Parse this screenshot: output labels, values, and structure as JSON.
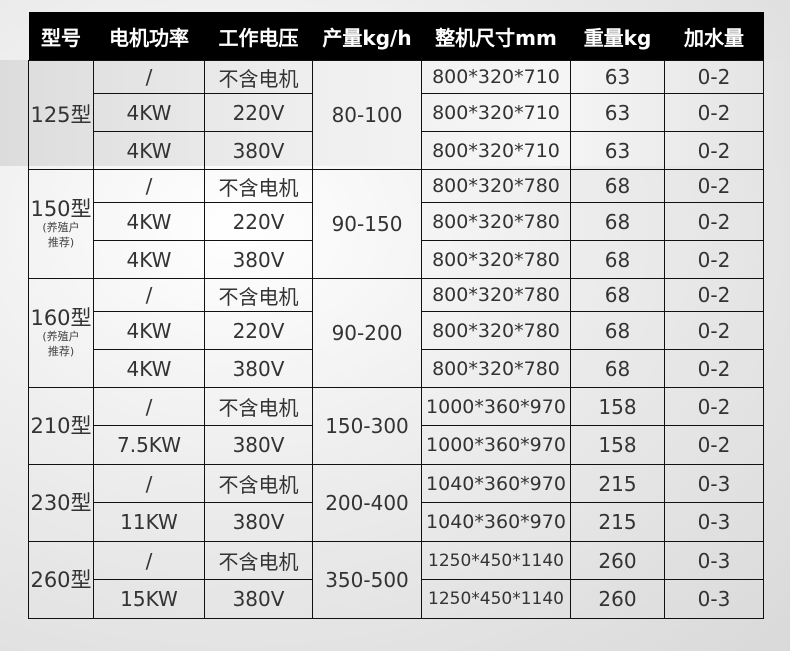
{
  "headers": [
    "型号",
    "电机功率",
    "工作电压",
    "产量kg/h",
    "整机尺寸mm",
    "重量kg",
    "加水量"
  ],
  "groups": [
    {
      "model": "125型",
      "note": "",
      "output": "80-100",
      "rows": [
        {
          "power": "/",
          "voltage": "不含电机",
          "size": "800*320*710",
          "weight": "63",
          "water": "0-2"
        },
        {
          "power": "4KW",
          "voltage": "220V",
          "size": "800*320*710",
          "weight": "63",
          "water": "0-2"
        },
        {
          "power": "4KW",
          "voltage": "380V",
          "size": "800*320*710",
          "weight": "63",
          "water": "0-2"
        }
      ]
    },
    {
      "model": "150型",
      "note": "(养殖户推荐)",
      "output": "90-150",
      "rows": [
        {
          "power": "/",
          "voltage": "不含电机",
          "size": "800*320*780",
          "weight": "68",
          "water": "0-2"
        },
        {
          "power": "4KW",
          "voltage": "220V",
          "size": "800*320*780",
          "weight": "68",
          "water": "0-2"
        },
        {
          "power": "4KW",
          "voltage": "380V",
          "size": "800*320*780",
          "weight": "68",
          "water": "0-2"
        }
      ]
    },
    {
      "model": "160型",
      "note": "(养殖户推荐)",
      "output": "90-200",
      "rows": [
        {
          "power": "/",
          "voltage": "不含电机",
          "size": "800*320*780",
          "weight": "68",
          "water": "0-2"
        },
        {
          "power": "4KW",
          "voltage": "220V",
          "size": "800*320*780",
          "weight": "68",
          "water": "0-2"
        },
        {
          "power": "4KW",
          "voltage": "380V",
          "size": "800*320*780",
          "weight": "68",
          "water": "0-2"
        }
      ]
    },
    {
      "model": "210型",
      "note": "",
      "output": "150-300",
      "rows": [
        {
          "power": "/",
          "voltage": "不含电机",
          "size": "1000*360*970",
          "weight": "158",
          "water": "0-2"
        },
        {
          "power": "7.5KW",
          "voltage": "380V",
          "size": "1000*360*970",
          "weight": "158",
          "water": "0-2"
        }
      ]
    },
    {
      "model": "230型",
      "note": "",
      "output": "200-400",
      "rows": [
        {
          "power": "/",
          "voltage": "不含电机",
          "size": "1040*360*970",
          "weight": "215",
          "water": "0-3"
        },
        {
          "power": "11KW",
          "voltage": "380V",
          "size": "1040*360*970",
          "weight": "215",
          "water": "0-3"
        }
      ]
    },
    {
      "model": "260型",
      "note": "",
      "output": "350-500",
      "rows": [
        {
          "power": "/",
          "voltage": "不含电机",
          "size": "1250*450*1140",
          "weight": "260",
          "water": "0-3"
        },
        {
          "power": "15KW",
          "voltage": "380V",
          "size": "1250*450*1140",
          "weight": "260",
          "water": "0-3"
        }
      ]
    }
  ]
}
